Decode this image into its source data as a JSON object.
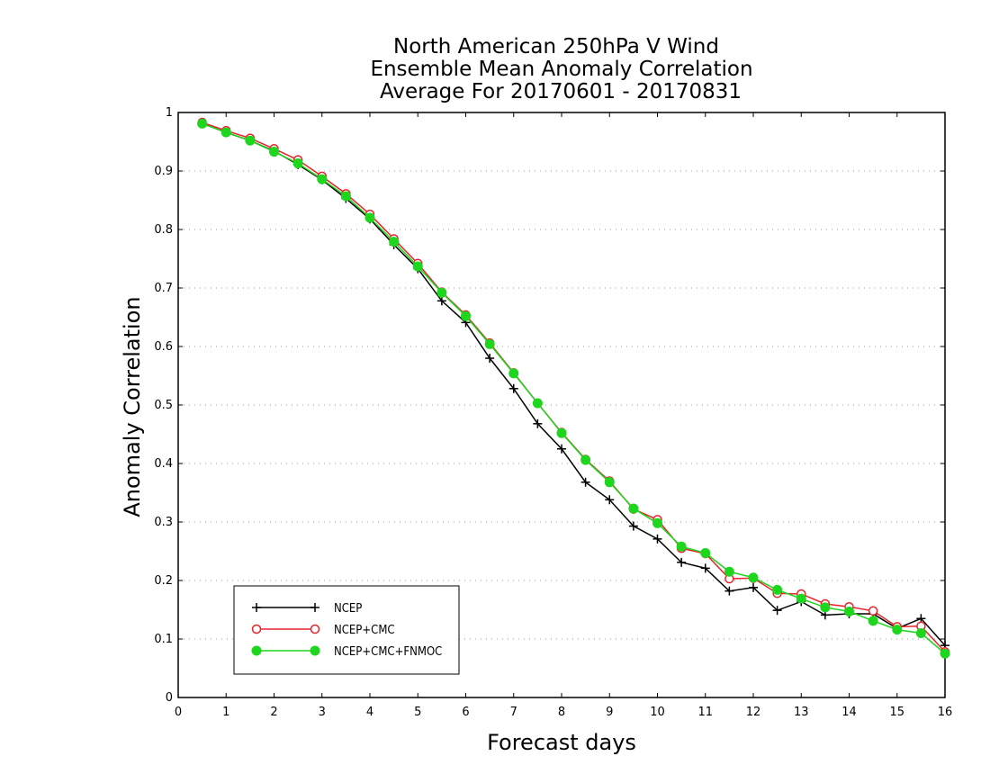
{
  "chart_data": {
    "type": "line",
    "title_lines": [
      "North American 250hPa V Wind",
      "Ensemble Mean Anomaly Correlation",
      "Average For 20170601 - 20170831"
    ],
    "xlabel": "Forecast days",
    "ylabel": "Anomaly Correlation",
    "xlim": [
      0,
      16
    ],
    "ylim": [
      0,
      1
    ],
    "x_ticks": [
      "0",
      "1",
      "2",
      "3",
      "4",
      "5",
      "6",
      "7",
      "8",
      "9",
      "10",
      "11",
      "12",
      "13",
      "14",
      "15",
      "16"
    ],
    "y_ticks": [
      "0",
      "0.1",
      "0.2",
      "0.3",
      "0.4",
      "0.5",
      "0.6",
      "0.7",
      "0.8",
      "0.9",
      "1"
    ],
    "grid": "horizontal dotted",
    "legend_position": "bottom-left",
    "x": [
      0.5,
      1,
      1.5,
      2,
      2.5,
      3,
      3.5,
      4,
      4.5,
      5,
      5.5,
      6,
      6.5,
      7,
      7.5,
      8,
      8.5,
      9,
      9.5,
      10,
      10.5,
      11,
      11.5,
      12,
      12.5,
      13,
      13.5,
      14,
      14.5,
      15,
      15.5,
      16
    ],
    "series": [
      {
        "name": "NCEP",
        "color": "#000000",
        "marker": "plus",
        "values": [
          0.981,
          0.966,
          0.952,
          0.934,
          0.911,
          0.885,
          0.853,
          0.818,
          0.774,
          0.733,
          0.678,
          0.641,
          0.58,
          0.528,
          0.468,
          0.425,
          0.368,
          0.338,
          0.293,
          0.271,
          0.231,
          0.221,
          0.182,
          0.188,
          0.149,
          0.164,
          0.141,
          0.143,
          0.143,
          0.118,
          0.135,
          0.089
        ]
      },
      {
        "name": "NCEP+CMC",
        "color": "#e8232b",
        "marker": "open-circle",
        "values": [
          0.983,
          0.969,
          0.956,
          0.938,
          0.919,
          0.891,
          0.861,
          0.826,
          0.784,
          0.742,
          0.693,
          0.654,
          0.606,
          0.555,
          0.503,
          0.453,
          0.407,
          0.37,
          0.322,
          0.304,
          0.255,
          0.246,
          0.203,
          0.204,
          0.178,
          0.177,
          0.16,
          0.155,
          0.148,
          0.121,
          0.122,
          0.078
        ]
      },
      {
        "name": "NCEP+CMC+FNMOC",
        "color": "#1ed61e",
        "marker": "filled-circle",
        "values": [
          0.981,
          0.966,
          0.952,
          0.933,
          0.913,
          0.886,
          0.857,
          0.82,
          0.779,
          0.737,
          0.692,
          0.652,
          0.604,
          0.554,
          0.503,
          0.452,
          0.406,
          0.368,
          0.323,
          0.298,
          0.258,
          0.247,
          0.215,
          0.205,
          0.184,
          0.169,
          0.154,
          0.147,
          0.131,
          0.116,
          0.11,
          0.075
        ]
      }
    ]
  }
}
